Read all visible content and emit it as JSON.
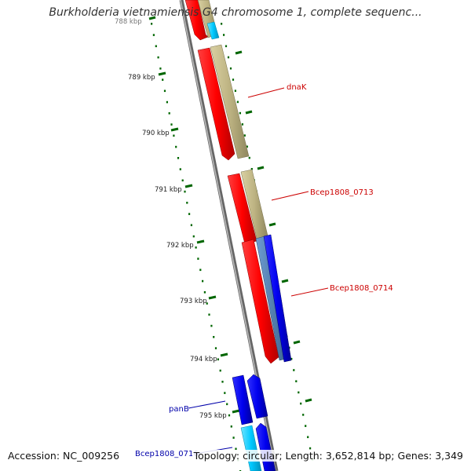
{
  "title": "Burkholderia vietnamiensis G4 chromosome 1, complete sequenc...",
  "footer": {
    "accession": "Accession: NC_009256",
    "topology": "Topology: circular;",
    "length": "Length: 3,652,814 bp;",
    "genes": "Genes: 3,349"
  },
  "scale": {
    "unit": "kbp",
    "ticks": [
      {
        "value": 788,
        "label": "788 kbp"
      },
      {
        "value": 789,
        "label": "789 kbp"
      },
      {
        "value": 790,
        "label": "790 kbp"
      },
      {
        "value": 791,
        "label": "791 kbp"
      },
      {
        "value": 792,
        "label": "792 kbp"
      },
      {
        "value": 793,
        "label": "793 kbp"
      },
      {
        "value": 794,
        "label": "794 kbp"
      },
      {
        "value": 795,
        "label": "795 kbp"
      }
    ]
  },
  "gene_labels": [
    {
      "name": "dnaK",
      "color": "#cc0000"
    },
    {
      "name": "Bcep1808_0713",
      "color": "#cc0000"
    },
    {
      "name": "Bcep1808_0714",
      "color": "#cc0000"
    },
    {
      "name": "panB",
      "color": "#0000aa"
    },
    {
      "name": "Bcep1808_0716",
      "color": "#0000aa"
    }
  ],
  "colors": {
    "backbone": "#888888",
    "forward_gene": "#ff0000",
    "reverse_gene": "#0000ff",
    "cds_khaki": "#bdb382",
    "cds_steelblue": "#4f7fb7",
    "cds_cyan": "#00c8ff",
    "tick_green": "#006600"
  }
}
